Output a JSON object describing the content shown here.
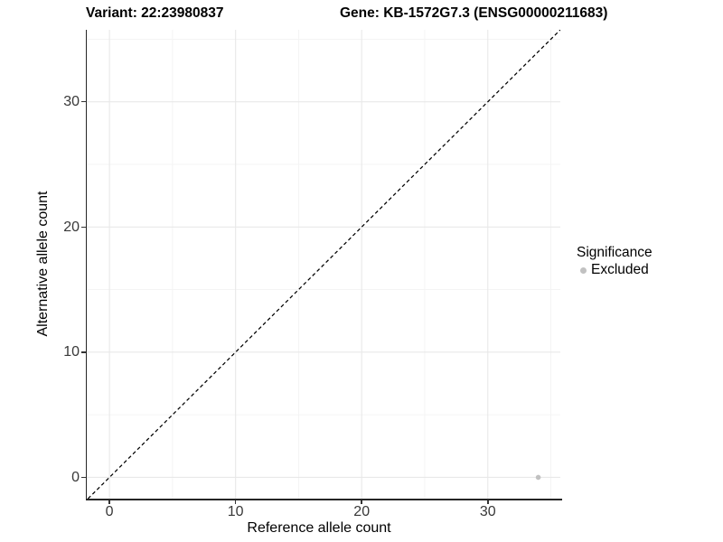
{
  "chart_data": {
    "type": "scatter",
    "titles": {
      "variant": "Variant: 22:23980837",
      "gene": "Gene: KB-1572G7.3 (ENSG00000211683)"
    },
    "xlabel": "Reference allele count",
    "ylabel": "Alternative allele count",
    "xlim": [
      -1.8,
      35.75
    ],
    "ylim": [
      -1.7,
      35.75
    ],
    "xticks": [
      0,
      10,
      20,
      30
    ],
    "yticks": [
      0,
      10,
      20,
      30
    ],
    "x_minor": [
      5,
      15,
      25,
      35
    ],
    "y_minor": [
      5,
      15,
      25,
      35
    ],
    "grid": "on",
    "points": [
      {
        "x": 34,
        "y": 0,
        "series": "Excluded"
      }
    ],
    "abline": {
      "slope": 1,
      "intercept": 0,
      "style": "dashed",
      "color": "#000000"
    },
    "legend": {
      "title": "Significance",
      "position": "right",
      "entries": [
        {
          "label": "Excluded",
          "color": "#c1c1c1"
        }
      ]
    }
  },
  "colors": {
    "background": "#ffffff",
    "grid_major": "#e8e8e8",
    "grid_minor": "#f3f3f3",
    "axis_line": "#262626",
    "tick_mark": "#333333",
    "tick_label": "#383838",
    "title_text": "#000000",
    "point": "#c1c1c1"
  }
}
